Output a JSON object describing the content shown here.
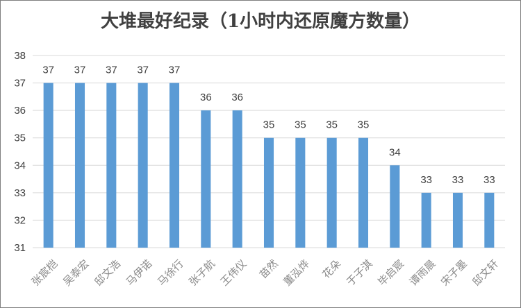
{
  "chart_data": {
    "type": "bar",
    "title": "大堆最好纪录（1小时内还原魔方数量）",
    "categories": [
      "张宸桤",
      "吴泰宏",
      "邸文浩",
      "马伊诺",
      "马徐行",
      "张子航",
      "王伟仪",
      "苗然",
      "董泓烨",
      "花朵",
      "于子淇",
      "毕启宸",
      "谭雨晨",
      "宋子墨",
      "邸文轩"
    ],
    "series": [
      {
        "values": [
          37,
          37,
          37,
          37,
          37,
          36,
          36,
          35,
          35,
          35,
          35,
          34,
          33,
          33,
          33
        ]
      }
    ],
    "ylim": [
      31,
      38
    ],
    "yticks": [
      31,
      32,
      33,
      34,
      35,
      36,
      37,
      38
    ],
    "grid": true,
    "bar_color": "#5b9bd5",
    "xlabel": "",
    "ylabel": ""
  }
}
